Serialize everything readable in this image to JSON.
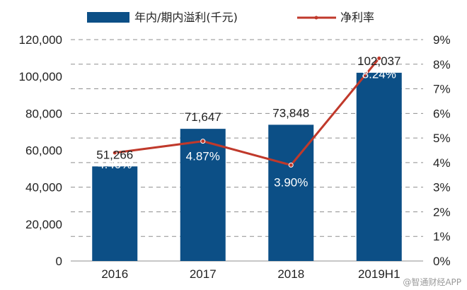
{
  "chart_data": {
    "type": "bar+line",
    "categories": [
      "2016",
      "2017",
      "2018",
      "2019H1"
    ],
    "bar_series": {
      "name": "年内/期内溢利(千元)",
      "values": [
        51266,
        71647,
        73848,
        102037
      ],
      "labels": [
        "51,266",
        "71,647",
        "73,848",
        "102,037"
      ],
      "color": "#0c4f86"
    },
    "line_series": {
      "name": "净利率",
      "values": [
        4.4,
        4.87,
        3.9,
        8.24
      ],
      "labels": [
        "4.40%",
        "4.87%",
        "3.90%",
        "8.24%"
      ],
      "color": "#c0392b"
    },
    "y_left": {
      "min": 0,
      "max": 120000,
      "ticks": [
        "0",
        "20,000",
        "40,000",
        "60,000",
        "80,000",
        "100,000",
        "120,000"
      ]
    },
    "y_right": {
      "min": 0,
      "max": 9,
      "ticks": [
        "0%",
        "1%",
        "2%",
        "3%",
        "4%",
        "5%",
        "6%",
        "7%",
        "8%",
        "9%"
      ]
    },
    "grid": true,
    "legend_position": "top"
  },
  "watermark": "@智通财经APP"
}
